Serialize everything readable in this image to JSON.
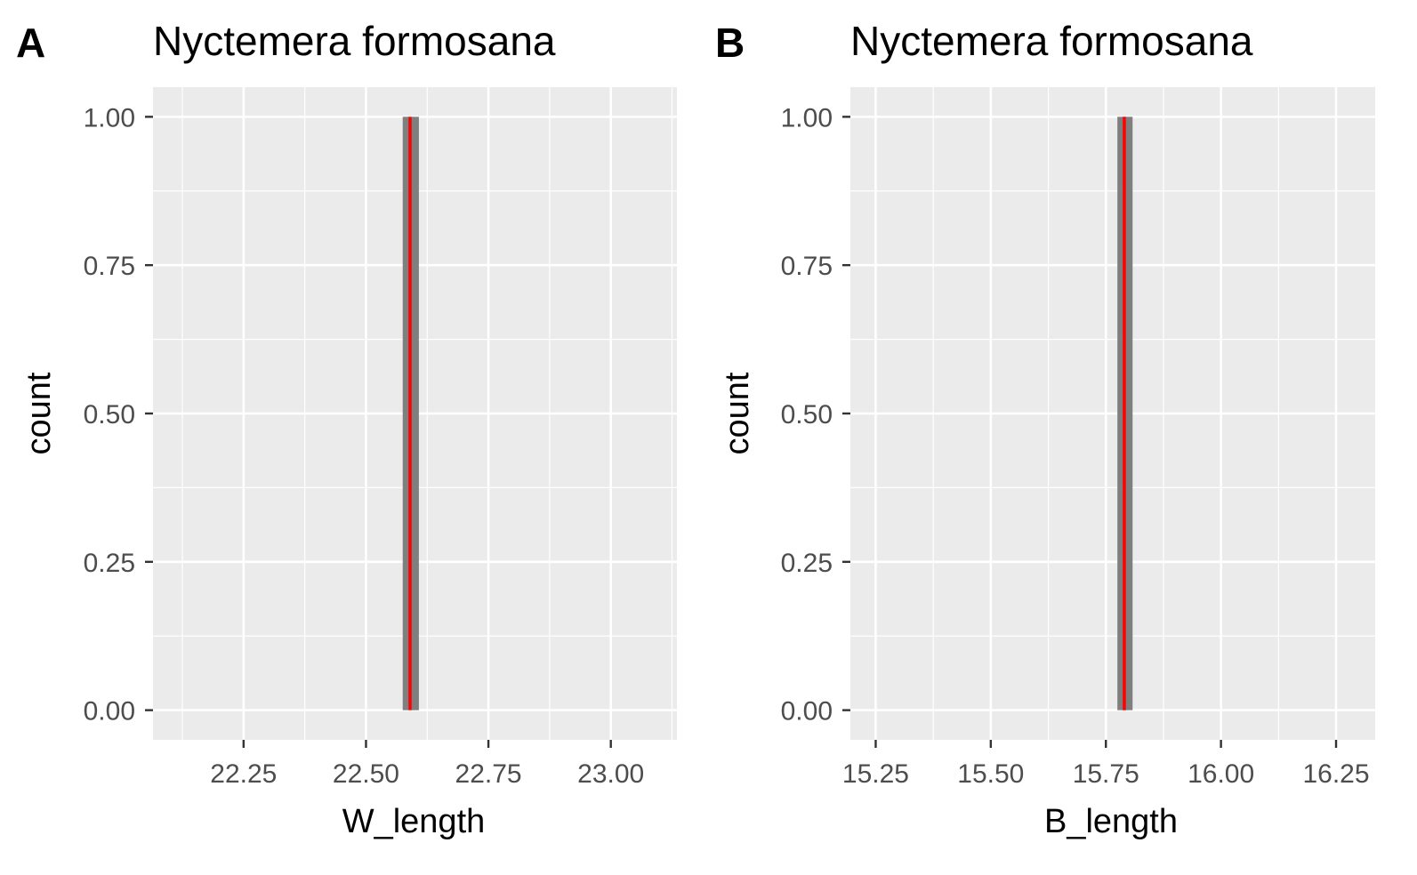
{
  "colors": {
    "panel_background": "#ebebeb",
    "grid": "#ffffff",
    "bar_fill": "#7f7f7f",
    "vline": "#ff0000",
    "tick_text": "#4d4d4d",
    "tick_mark": "#333333"
  },
  "chart_data": [
    {
      "type": "bar",
      "panel_tag": "A",
      "title": "Nyctemera formosana",
      "xlabel": "W_length",
      "ylabel": "count",
      "xlim": [
        22.065,
        23.135
      ],
      "ylim": [
        -0.05,
        1.05
      ],
      "x_ticks": [
        22.25,
        22.5,
        22.75,
        23.0
      ],
      "x_tick_labels": [
        "22.25",
        "22.50",
        "22.75",
        "23.00"
      ],
      "x_minor_ticks": [
        22.125,
        22.375,
        22.625,
        22.875,
        23.125
      ],
      "y_ticks": [
        0,
        0.25,
        0.5,
        0.75,
        1.0
      ],
      "y_tick_labels": [
        "0.00",
        "0.25",
        "0.50",
        "0.75",
        "1.00"
      ],
      "y_minor_ticks": [
        0.125,
        0.375,
        0.625,
        0.875
      ],
      "bins": [
        {
          "x_start": 22.575,
          "x_end": 22.608,
          "count": 1
        }
      ],
      "vline_x": 22.59,
      "grid": true
    },
    {
      "type": "bar",
      "panel_tag": "B",
      "title": "Nyctemera formosana",
      "xlabel": "B_length",
      "ylabel": "count",
      "xlim": [
        15.195,
        16.335
      ],
      "ylim": [
        -0.05,
        1.05
      ],
      "x_ticks": [
        15.25,
        15.5,
        15.75,
        16.0,
        16.25
      ],
      "x_tick_labels": [
        "15.25",
        "15.50",
        "15.75",
        "16.00",
        "16.25"
      ],
      "x_minor_ticks": [
        15.375,
        15.625,
        15.875,
        16.125
      ],
      "y_ticks": [
        0,
        0.25,
        0.5,
        0.75,
        1.0
      ],
      "y_tick_labels": [
        "0.00",
        "0.25",
        "0.50",
        "0.75",
        "1.00"
      ],
      "y_minor_ticks": [
        0.125,
        0.375,
        0.625,
        0.875
      ],
      "bins": [
        {
          "x_start": 15.775,
          "x_end": 15.808,
          "count": 1
        }
      ],
      "vline_x": 15.79,
      "grid": true
    }
  ]
}
